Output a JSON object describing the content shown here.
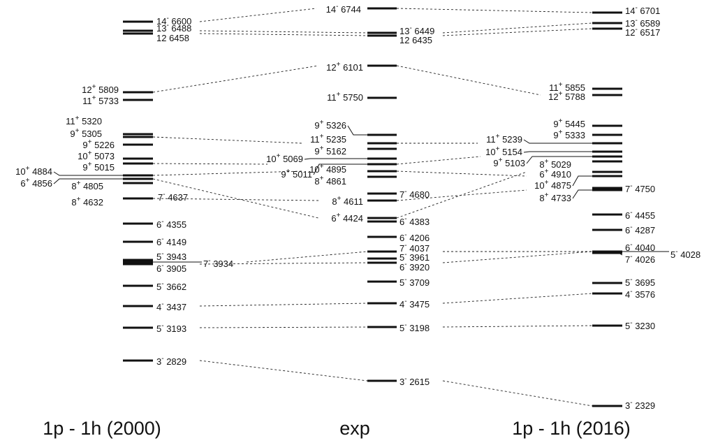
{
  "columns": [
    {
      "id": "c1",
      "title": "1p - 1h (2000)",
      "levels": [
        {
          "spin": "14",
          "parity": "-",
          "energy": "6600"
        },
        {
          "spin": "13",
          "parity": "-",
          "energy": "6488"
        },
        {
          "spin": "12",
          "parity": "",
          "energy": "6458"
        },
        {
          "spin": "12",
          "parity": "+",
          "energy": "5809"
        },
        {
          "spin": "11",
          "parity": "+",
          "energy": "5733"
        },
        {
          "spin": "11",
          "parity": "+",
          "energy": "5320"
        },
        {
          "spin": "9",
          "parity": "+",
          "energy": "5305"
        },
        {
          "spin": "9",
          "parity": "+",
          "energy": "5226"
        },
        {
          "spin": "10",
          "parity": "+",
          "energy": "5073"
        },
        {
          "spin": "9",
          "parity": "+",
          "energy": "5015"
        },
        {
          "spin": "10",
          "parity": "+",
          "energy": "4884"
        },
        {
          "spin": "6",
          "parity": "+",
          "energy": "4856"
        },
        {
          "spin": "8",
          "parity": "+",
          "energy": "4805"
        },
        {
          "spin": "7",
          "parity": "-",
          "energy": "4637"
        },
        {
          "spin": "8",
          "parity": "+",
          "energy": "4632"
        },
        {
          "spin": "6",
          "parity": "-",
          "energy": "4355"
        },
        {
          "spin": "6",
          "parity": "-",
          "energy": "4149"
        },
        {
          "spin": "5",
          "parity": "-",
          "energy": "3943"
        },
        {
          "spin": "7",
          "parity": "-",
          "energy": "3934"
        },
        {
          "spin": "6",
          "parity": "-",
          "energy": "3905"
        },
        {
          "spin": "5",
          "parity": "-",
          "energy": "3662"
        },
        {
          "spin": "4",
          "parity": "-",
          "energy": "3437"
        },
        {
          "spin": "5",
          "parity": "-",
          "energy": "3193"
        },
        {
          "spin": "3",
          "parity": "-",
          "energy": "2829"
        }
      ]
    },
    {
      "id": "c2",
      "title": "exp",
      "levels": [
        {
          "spin": "14",
          "parity": "-",
          "energy": "6744"
        },
        {
          "spin": "13",
          "parity": "-",
          "energy": "6449"
        },
        {
          "spin": "12",
          "parity": "",
          "energy": "6435"
        },
        {
          "spin": "12",
          "parity": "+",
          "energy": "6101"
        },
        {
          "spin": "11",
          "parity": "+",
          "energy": "5750"
        },
        {
          "spin": "9",
          "parity": "+",
          "energy": "5326"
        },
        {
          "spin": "11",
          "parity": "+",
          "energy": "5235"
        },
        {
          "spin": "9",
          "parity": "+",
          "energy": "5162"
        },
        {
          "spin": "10",
          "parity": "+",
          "energy": "5069"
        },
        {
          "spin": "9",
          "parity": "+",
          "energy": "5011"
        },
        {
          "spin": "10",
          "parity": "+",
          "energy": "4895"
        },
        {
          "spin": "8",
          "parity": "+",
          "energy": "4861"
        },
        {
          "spin": "7",
          "parity": "-",
          "energy": "4680"
        },
        {
          "spin": "8",
          "parity": "+",
          "energy": "4611"
        },
        {
          "spin": "6",
          "parity": "+",
          "energy": "4424"
        },
        {
          "spin": "6",
          "parity": "-",
          "energy": "4383"
        },
        {
          "spin": "6",
          "parity": "-",
          "energy": "4206"
        },
        {
          "spin": "7",
          "parity": "-",
          "energy": "4037"
        },
        {
          "spin": "5",
          "parity": "-",
          "energy": "3961"
        },
        {
          "spin": "6",
          "parity": "-",
          "energy": "3920"
        },
        {
          "spin": "5",
          "parity": "-",
          "energy": "3709"
        },
        {
          "spin": "4",
          "parity": "-",
          "energy": "3475"
        },
        {
          "spin": "5",
          "parity": "-",
          "energy": "3198"
        },
        {
          "spin": "3",
          "parity": "-",
          "energy": "2615"
        }
      ]
    },
    {
      "id": "c3",
      "title": "1p - 1h (2016)",
      "levels": [
        {
          "spin": "14",
          "parity": "-",
          "energy": "6701"
        },
        {
          "spin": "13",
          "parity": "-",
          "energy": "6589"
        },
        {
          "spin": "12",
          "parity": "-",
          "energy": "6517"
        },
        {
          "spin": "11",
          "parity": "+",
          "energy": "5855"
        },
        {
          "spin": "12",
          "parity": "+",
          "energy": "5788"
        },
        {
          "spin": "9",
          "parity": "+",
          "energy": "5445"
        },
        {
          "spin": "9",
          "parity": "+",
          "energy": "5333"
        },
        {
          "spin": "11",
          "parity": "+",
          "energy": "5239"
        },
        {
          "spin": "10",
          "parity": "+",
          "energy": "5154"
        },
        {
          "spin": "9",
          "parity": "+",
          "energy": "5103"
        },
        {
          "spin": "8",
          "parity": "+",
          "energy": "5029"
        },
        {
          "spin": "6",
          "parity": "+",
          "energy": "4910"
        },
        {
          "spin": "10",
          "parity": "+",
          "energy": "4875"
        },
        {
          "spin": "7",
          "parity": "-",
          "energy": "4750"
        },
        {
          "spin": "8",
          "parity": "+",
          "energy": "4733"
        },
        {
          "spin": "6",
          "parity": "-",
          "energy": "4455"
        },
        {
          "spin": "6",
          "parity": "-",
          "energy": "4287"
        },
        {
          "spin": "6",
          "parity": "-",
          "energy": "4040"
        },
        {
          "spin": "5",
          "parity": "-",
          "energy": "4028"
        },
        {
          "spin": "7",
          "parity": "-",
          "energy": "4026"
        },
        {
          "spin": "5",
          "parity": "-",
          "energy": "3695"
        },
        {
          "spin": "4",
          "parity": "-",
          "energy": "3576"
        },
        {
          "spin": "5",
          "parity": "-",
          "energy": "3230"
        },
        {
          "spin": "3",
          "parity": "-",
          "energy": "2329"
        }
      ]
    }
  ]
}
